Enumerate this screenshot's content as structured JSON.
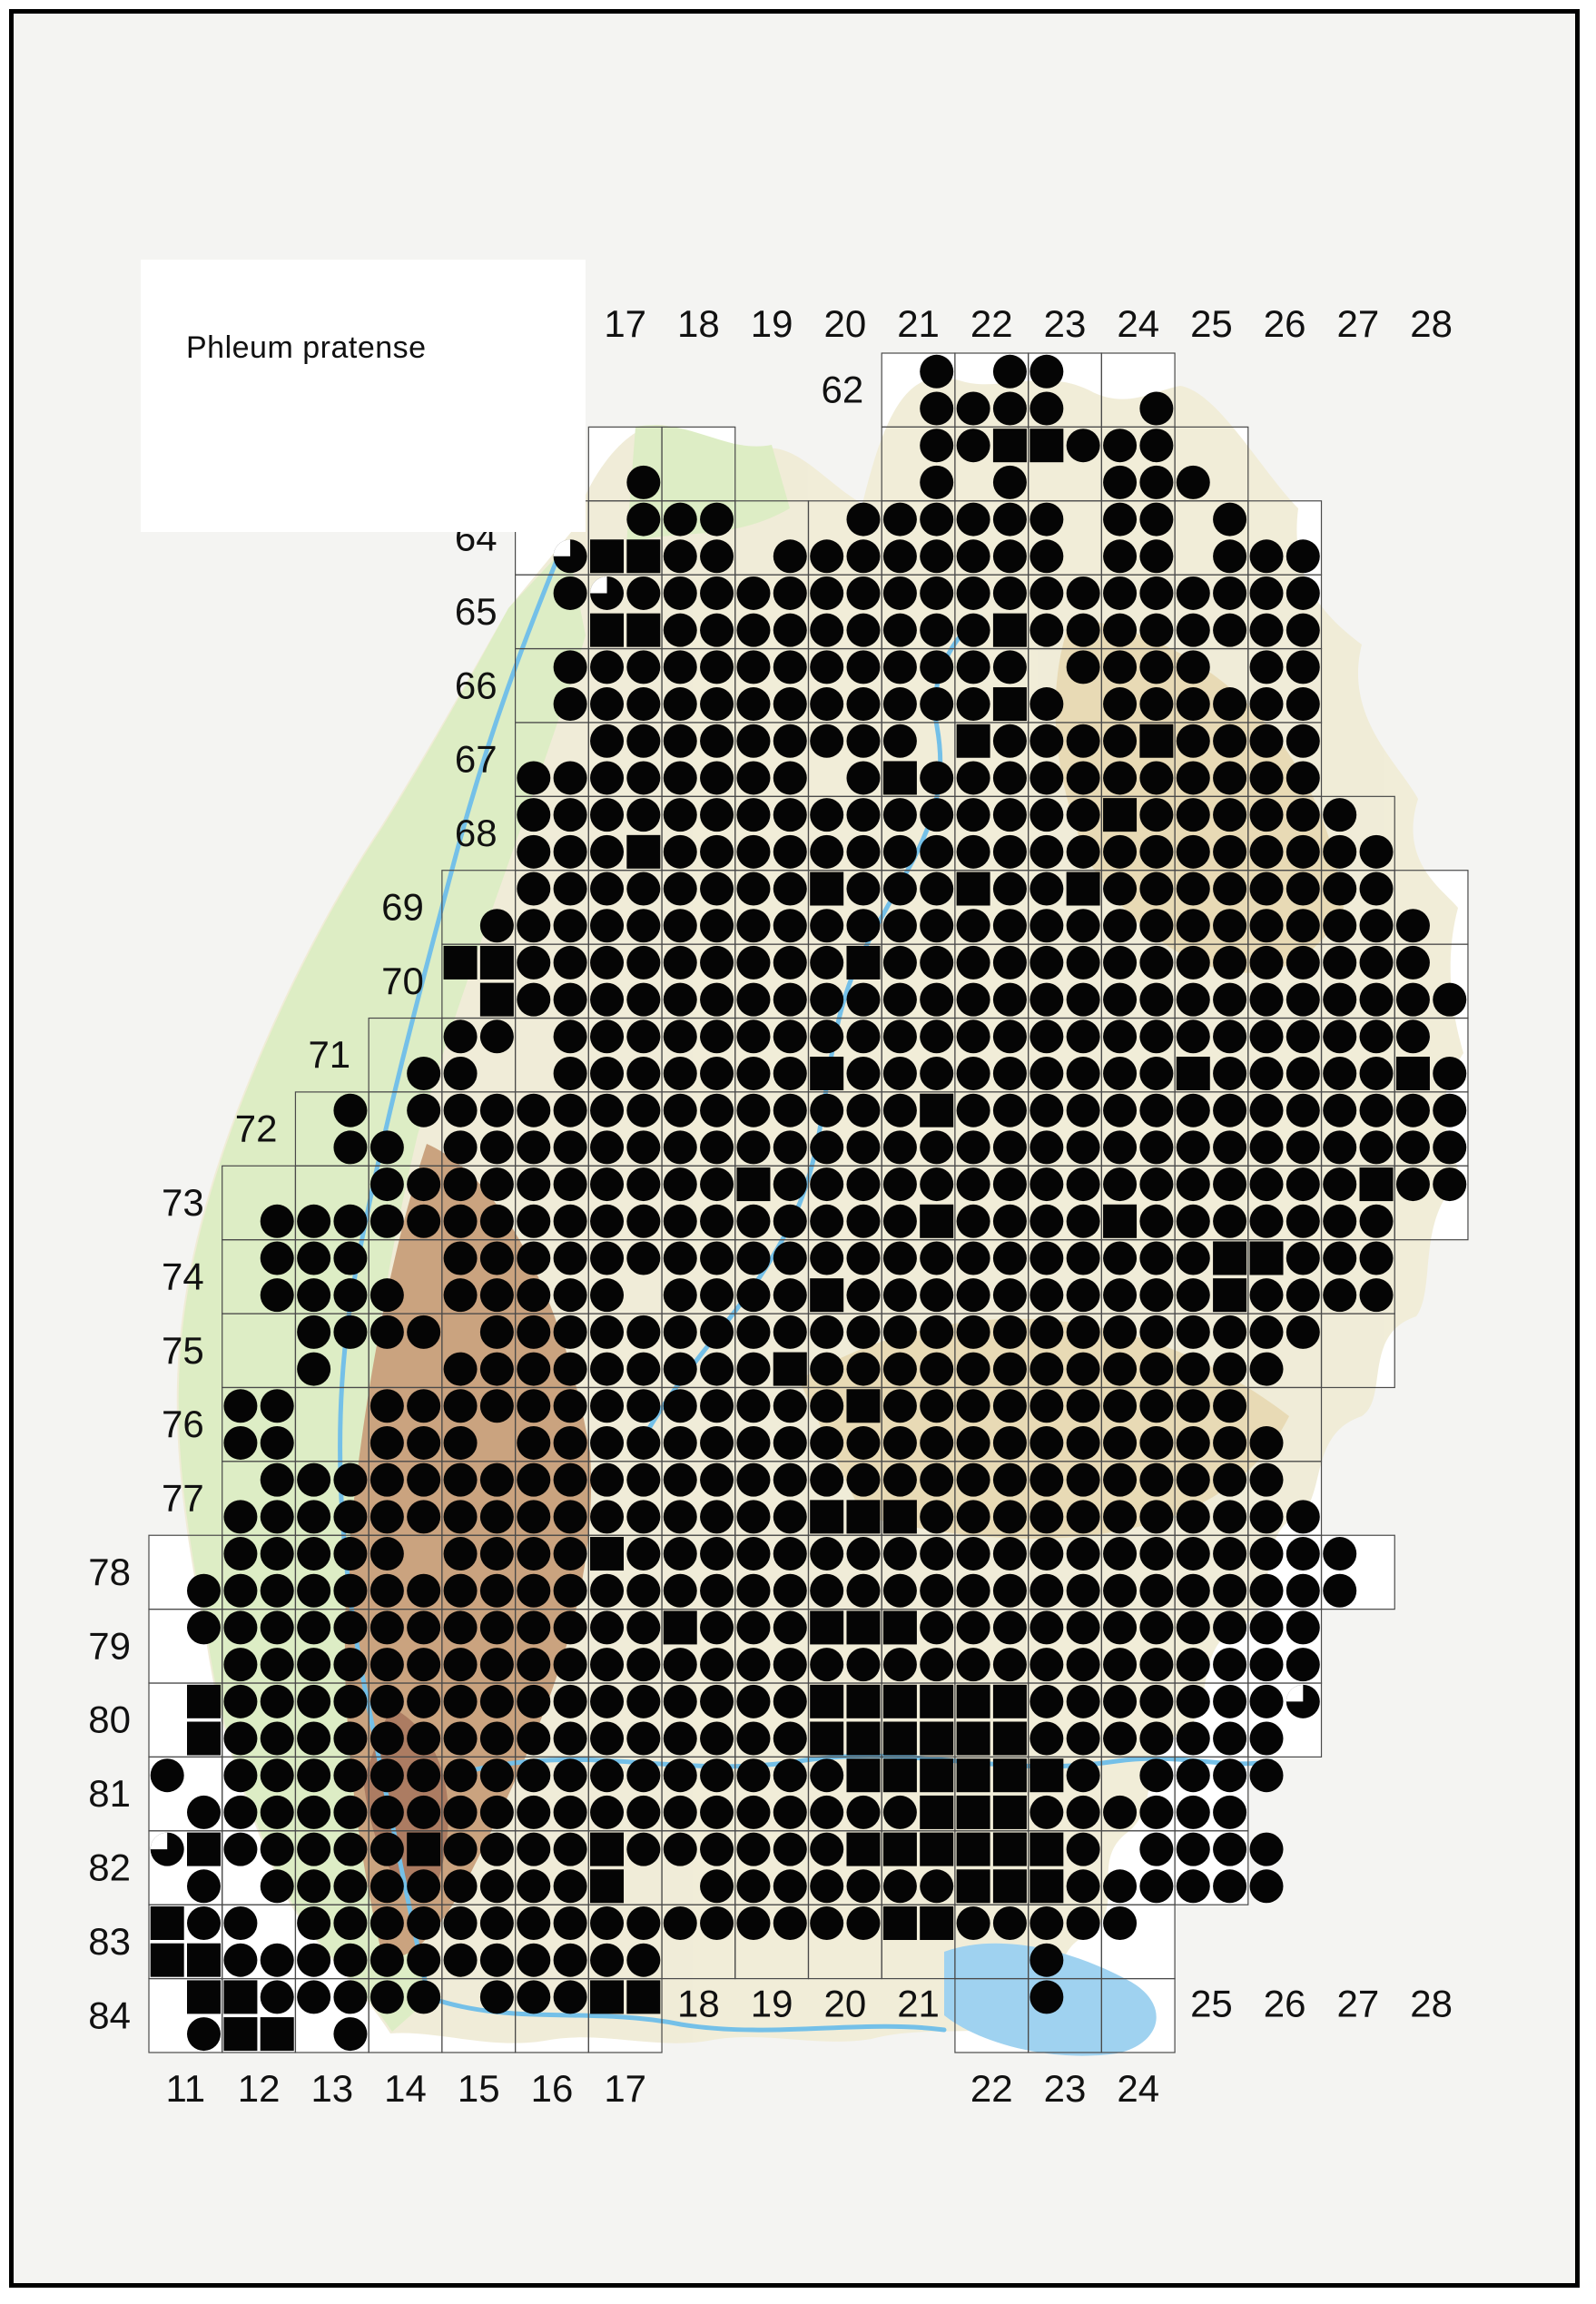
{
  "title": "Phleum pratense",
  "colors": {
    "symbol": "#050505",
    "grid_line": "#4a4a4a",
    "label_text": "#111111",
    "page_bg": "#f4f4f2",
    "cell_bg": "#ffffff",
    "land_base": "#f0ecd6",
    "land_green": "#dcedc2",
    "land_tan": "#e7d9b2",
    "land_brown": "#c89f79",
    "land_dark_brown": "#a8755a",
    "river_blue": "#74c0e8",
    "lake_blue": "#9fd2f0"
  },
  "legend": {
    "symbol_types": [
      "circle",
      "square",
      "half-circle"
    ]
  },
  "grid": {
    "col_labels_top": [
      "17",
      "18",
      "19",
      "20",
      "21",
      "22",
      "23",
      "24",
      "25",
      "26",
      "27",
      "28"
    ],
    "col_labels_top_start": 17,
    "row_labels_left": [
      "62",
      "63",
      "64",
      "65",
      "66",
      "67",
      "68",
      "69",
      "70",
      "71",
      "72",
      "73",
      "74",
      "75",
      "76",
      "77",
      "78",
      "79",
      "80",
      "81",
      "82",
      "83",
      "84"
    ],
    "bottom_labels_upper": [
      [
        "18",
        18
      ],
      [
        "19",
        19
      ],
      [
        "20",
        20
      ],
      [
        "21",
        21
      ],
      [
        "25",
        25
      ],
      [
        "26",
        26
      ],
      [
        "27",
        27
      ],
      [
        "28",
        28
      ]
    ],
    "bottom_labels_lower": [
      [
        "11",
        11
      ],
      [
        "12",
        12
      ],
      [
        "13",
        13
      ],
      [
        "14",
        14
      ],
      [
        "15",
        15
      ],
      [
        "16",
        16
      ],
      [
        "17",
        17
      ],
      [
        "22",
        22
      ],
      [
        "23",
        23
      ],
      [
        "24",
        24
      ]
    ]
  },
  "symbol_key": {
    "o": "filled-circle",
    "s": "filled-square",
    "h": "half-filled-circle",
    ".": "empty"
  },
  "half_col_order": "11W,11E,12W,12E,13W,13E,14W,14E,15W,15E,16W,16E,17W,17E,18W,18E,19W,19E,20W,20E,21W,21E,22W,22E,23W,23E,24W,24E,25W,25E,26W,26E,27W,27E,28W,28E",
  "rows": [
    {
      "r": 62,
      "ext": [
        [
          21,
          24
        ]
      ],
      "a": ".....................o.oo...........",
      "b": ".....................oooo..o........"
    },
    {
      "r": 63,
      "ext": [
        [
          17,
          18
        ],
        [
          21,
          25
        ]
      ],
      "a": ".....................oossooo........",
      "b": ".............o.......o.o..ooo......."
    },
    {
      "r": 64,
      "ext": [
        [
          16,
          26
        ]
      ],
      "a": ".............ooo...oooooo.oo.o......",
      "b": "...........hssoo.oooooooo.oo.ooo...."
    },
    {
      "r": 65,
      "ext": [
        [
          16,
          26
        ]
      ],
      "a": "...........ohooooooooooooooooooo....",
      "b": "............ssooooooooosoooooooo...."
    },
    {
      "r": 66,
      "ext": [
        [
          16,
          26
        ]
      ],
      "a": "...........ooooooooooooo.oooo.oo....",
      "b": "...........ooooooooooooso.oooooo...."
    },
    {
      "r": 67,
      "ext": [
        [
          16,
          26
        ]
      ],
      "a": "............ooooooooo.soooosoooo....",
      "b": "..........oooooooo.osooooooooooo...."
    },
    {
      "r": 68,
      "ext": [
        [
          16,
          27
        ]
      ],
      "a": "..........oooooooooooooooosoooooo...",
      "b": "..........ooosoooooooooooooooooooo.."
    },
    {
      "r": 69,
      "ext": [
        [
          15,
          28
        ]
      ],
      "a": "..........oooooooosooosoosoooooooo..",
      "b": ".........oooooooooooooooooooooooooo."
    },
    {
      "r": 70,
      "ext": [
        [
          15,
          28
        ]
      ],
      "a": "........ssooooooooosooooooooooooooo.",
      "b": ".........soooooooooooooooooooooooooo"
    },
    {
      "r": 71,
      "ext": [
        [
          14,
          28
        ]
      ],
      "a": "........oo.oooooooooooooooooooooooo.",
      "b": ".......oo..ooooooosooooooooosooooosoo"
    },
    {
      "r": 72,
      "ext": [
        [
          13,
          28
        ]
      ],
      "a": ".....o.oooooooooooooosoooooooooooooo",
      "b": ".....oo.oooooooooooooooooooooooooooo"
    },
    {
      "r": 73,
      "ext": [
        [
          12,
          28
        ]
      ],
      "a": "......oooooooooosoooooooooooooooosoo",
      "b": "...oooooooooooooooooosoooosooooooo.."
    },
    {
      "r": 74,
      "ext": [
        [
          12,
          27
        ]
      ],
      "a": "...ooo..ooooooooooooooooooooossooo..",
      "b": "...oooo.ooooo.oooosoooooooooosoooo.."
    },
    {
      "r": 75,
      "ext": [
        [
          12,
          27
        ]
      ],
      "a": "....oooo.ooooooooooooooooooooooo....",
      "b": "....o...ooooooooosooooooooooooo....."
    },
    {
      "r": 76,
      "ext": [
        [
          12,
          26
        ]
      ],
      "a": "..oo..ooooooooooooosoooooooooo......",
      "b": "..oo..ooo.ooooooooooooooooooooo....."
    },
    {
      "r": 77,
      "ext": [
        [
          12,
          26
        ]
      ],
      "a": "...oooooooooooooooooooooooooooo.....",
      "b": "..oooooooooooooooosssooooooooooo...."
    },
    {
      "r": 78,
      "ext": [
        [
          11,
          27
        ]
      ],
      "a": "..ooooo.oooosoooooooooooooooooooo...",
      "b": ".oooooooooooooooooooooooooooooooo..."
    },
    {
      "r": 79,
      "ext": [
        [
          11,
          26
        ]
      ],
      "a": ".ooooooooooooosooosssooooooooooo....",
      "b": "..oooooooooooooooooooooooooooooo...."
    },
    {
      "r": 80,
      "ext": [
        [
          11,
          26
        ]
      ],
      "a": ".soooooooooooooooossssssoooooooh....",
      "b": ".soooooooooooooooossssssooooooo....."
    },
    {
      "r": 81,
      "ext": [
        [
          11,
          25
        ]
      ],
      "a": "o.ooooooooooooooooosssssso.oooo.....",
      "b": ".oooooooooooooooooooosssoooooo......"
    },
    {
      "r": 82,
      "ext": [
        [
          11,
          25
        ]
      ],
      "a": "hsooooosoooosoooooosssssso.oooo.....",
      "b": ".o.ooooooooos..ooooooosssoooooo....."
    },
    {
      "r": 83,
      "ext": [
        [
          11,
          24
        ]
      ],
      "a": "soo.oooooooooooooooossooooo.........",
      "b": "ssoooooooooooo..........o..........."
    },
    {
      "r": 84,
      "ext": [
        [
          11,
          17
        ],
        [
          22,
          24
        ]
      ],
      "a": ".ssooooo.oooss..........o...........",
      "b": ".oss.o.............................."
    }
  ]
}
